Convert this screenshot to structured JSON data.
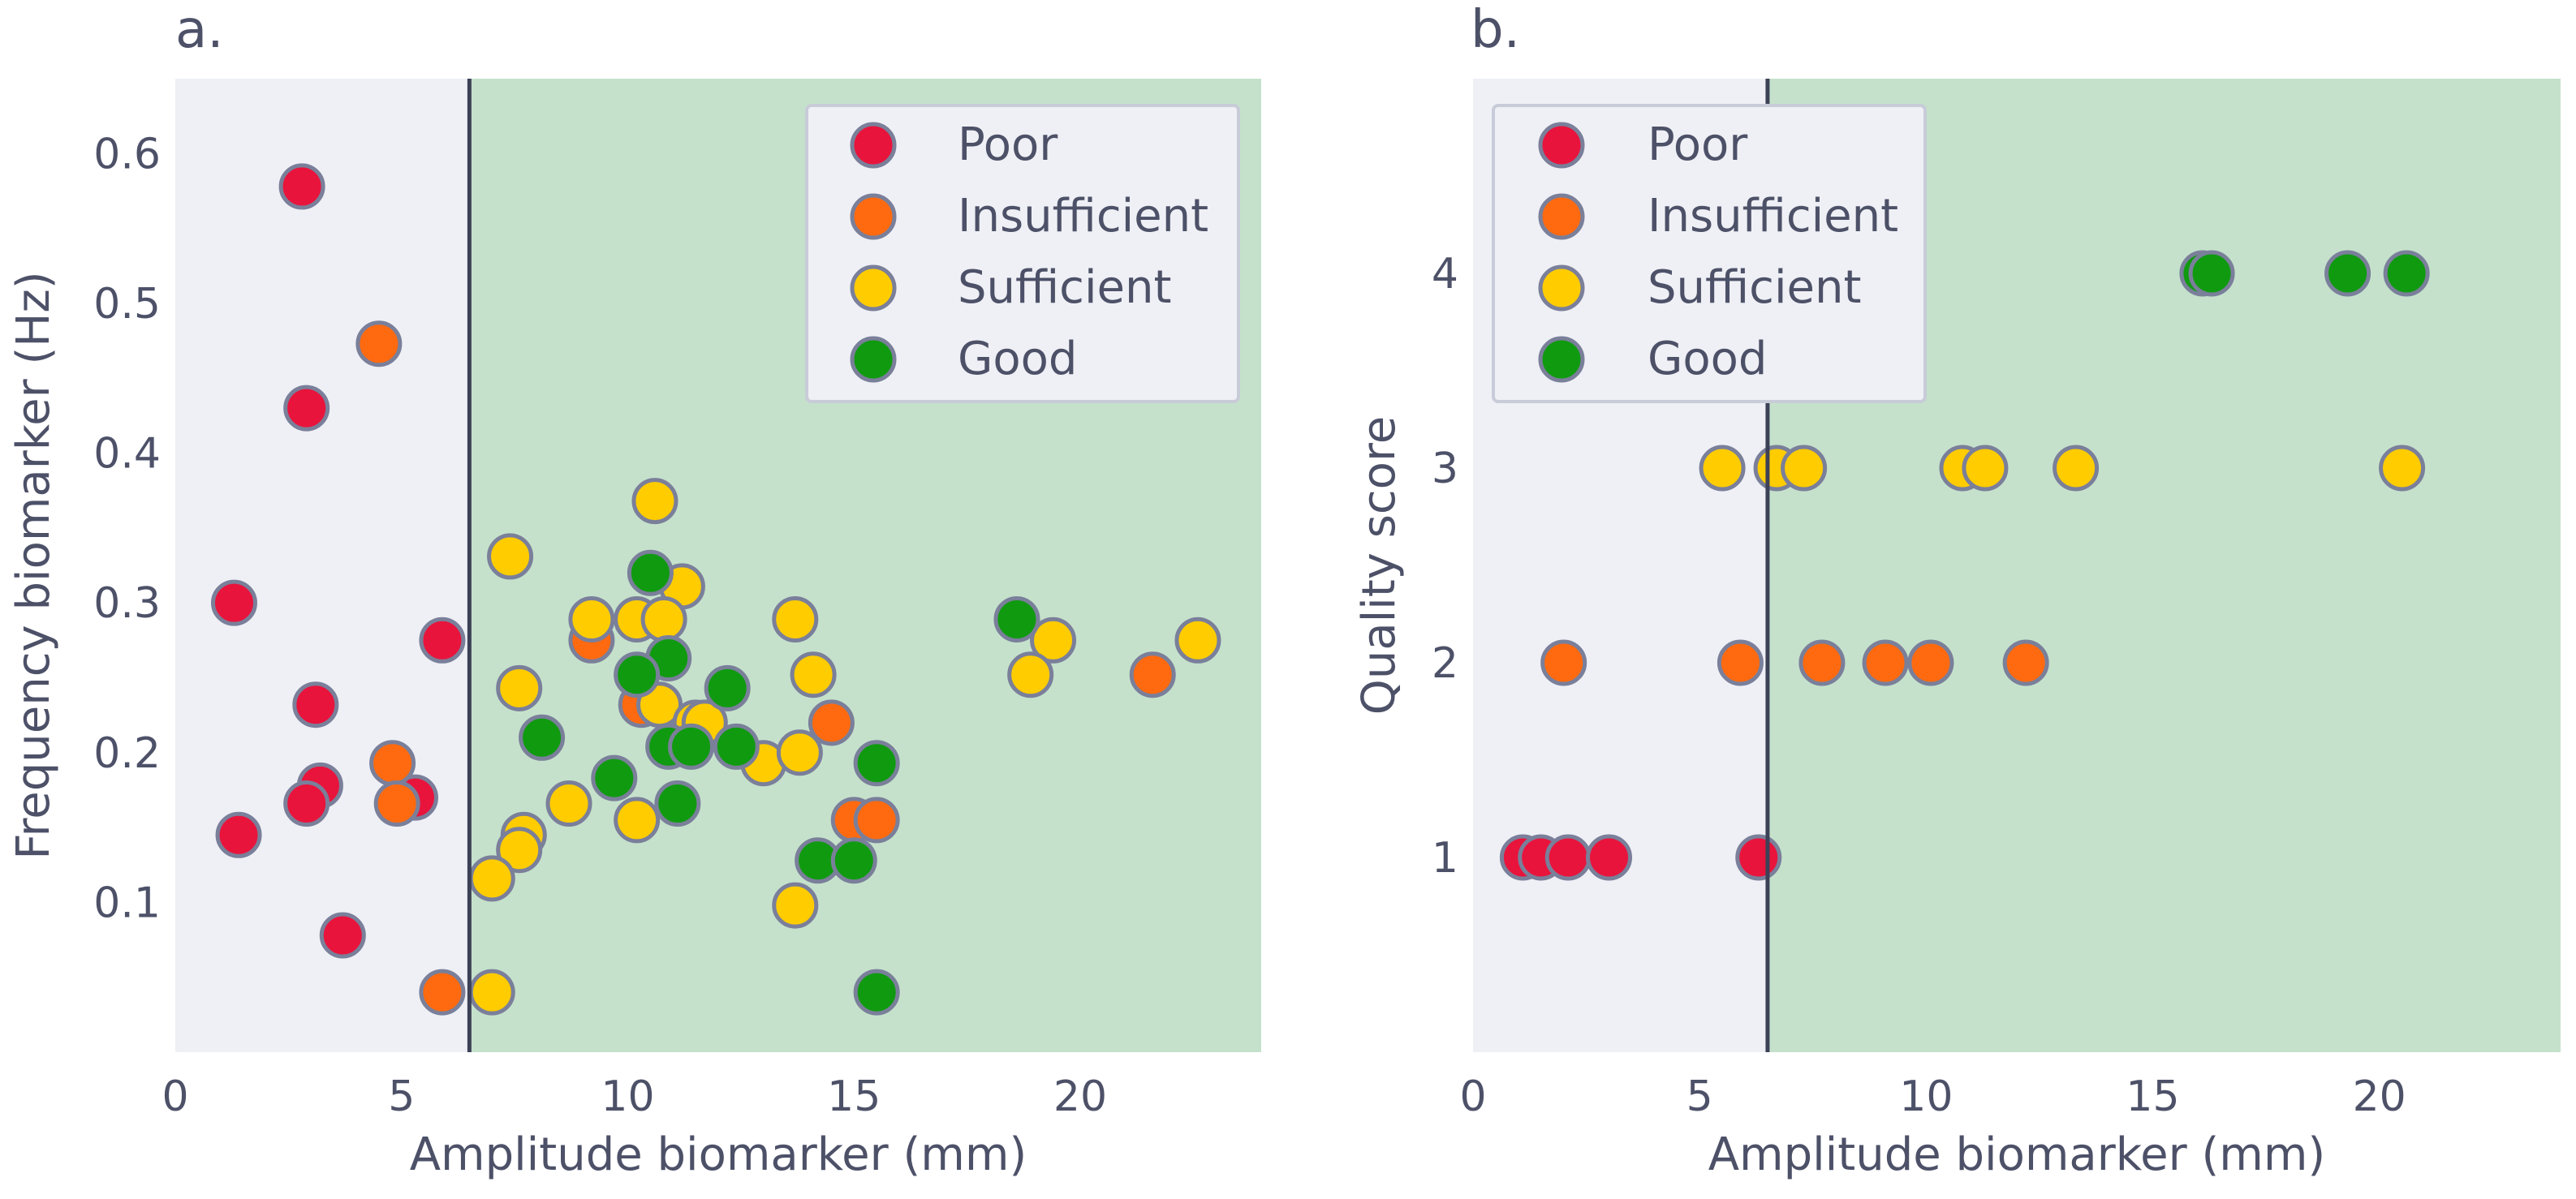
{
  "colors": {
    "poor": "#e8143c",
    "insufficient": "#ff6a10",
    "sufficient": "#ffcc00",
    "good": "#109a10",
    "marker_edge": "#7a7f9a",
    "plot_bg": "#eff0f5",
    "good_region": "#c5e1cb",
    "threshold_line": "#3d4157",
    "text": "#4d5168",
    "legend_bg": "#eff0f5",
    "legend_border": "#c8cbd8"
  },
  "chart_data": [
    {
      "panel_label": "a.",
      "type": "scatter",
      "xlabel": "Amplitude biomarker (mm)",
      "ylabel": "Frequency biomarker (Hz)",
      "xlim": [
        0,
        24
      ],
      "ylim": [
        0,
        0.65
      ],
      "xticks": [
        0,
        5,
        10,
        15,
        20
      ],
      "xtick_labels": [
        "0",
        "5",
        "10",
        "15",
        "20"
      ],
      "yticks": [
        0.1,
        0.2,
        0.3,
        0.4,
        0.5,
        0.6
      ],
      "ytick_labels": [
        "0.1",
        "0.2",
        "0.3",
        "0.4",
        "0.5",
        "0.6"
      ],
      "threshold_x": 6.5,
      "legend_position": "top-right",
      "series": [
        {
          "name": "Poor",
          "color_key": "poor",
          "points": [
            [
              2.8,
              0.578
            ],
            [
              2.9,
              0.43
            ],
            [
              1.3,
              0.3
            ],
            [
              5.9,
              0.275
            ],
            [
              3.1,
              0.232
            ],
            [
              3.2,
              0.178
            ],
            [
              2.9,
              0.166
            ],
            [
              5.3,
              0.17
            ],
            [
              1.4,
              0.145
            ],
            [
              3.7,
              0.078
            ]
          ]
        },
        {
          "name": "Insufficient",
          "color_key": "insufficient",
          "points": [
            [
              4.5,
              0.473
            ],
            [
              4.8,
              0.193
            ],
            [
              4.9,
              0.166
            ],
            [
              5.9,
              0.04
            ],
            [
              9.2,
              0.275
            ],
            [
              10.3,
              0.232
            ],
            [
              14.5,
              0.22
            ],
            [
              15.0,
              0.155
            ],
            [
              15.5,
              0.155
            ],
            [
              21.6,
              0.252
            ]
          ]
        },
        {
          "name": "Sufficient",
          "color_key": "sufficient",
          "points": [
            [
              10.6,
              0.368
            ],
            [
              7.4,
              0.331
            ],
            [
              11.2,
              0.311
            ],
            [
              9.2,
              0.289
            ],
            [
              10.2,
              0.289
            ],
            [
              10.8,
              0.289
            ],
            [
              13.7,
              0.289
            ],
            [
              7.6,
              0.243
            ],
            [
              10.7,
              0.232
            ],
            [
              11.5,
              0.22
            ],
            [
              13.0,
              0.193
            ],
            [
              13.8,
              0.2
            ],
            [
              14.1,
              0.252
            ],
            [
              19.4,
              0.275
            ],
            [
              22.6,
              0.275
            ],
            [
              18.9,
              0.252
            ],
            [
              8.7,
              0.166
            ],
            [
              10.2,
              0.155
            ],
            [
              7.7,
              0.145
            ],
            [
              7.6,
              0.135
            ],
            [
              7.0,
              0.116
            ],
            [
              13.7,
              0.098
            ],
            [
              7.0,
              0.04
            ],
            [
              11.7,
              0.22
            ]
          ]
        },
        {
          "name": "Good",
          "color_key": "good",
          "points": [
            [
              10.5,
              0.32
            ],
            [
              10.9,
              0.263
            ],
            [
              10.2,
              0.252
            ],
            [
              12.2,
              0.243
            ],
            [
              8.1,
              0.21
            ],
            [
              10.9,
              0.204
            ],
            [
              11.4,
              0.204
            ],
            [
              12.4,
              0.204
            ],
            [
              9.7,
              0.183
            ],
            [
              11.1,
              0.166
            ],
            [
              15.5,
              0.193
            ],
            [
              14.2,
              0.128
            ],
            [
              15.0,
              0.128
            ],
            [
              15.5,
              0.04
            ],
            [
              18.6,
              0.289
            ]
          ]
        }
      ]
    },
    {
      "panel_label": "b.",
      "type": "scatter",
      "xlabel": "Amplitude biomarker (mm)",
      "ylabel": "Quality score",
      "xlim": [
        0,
        24
      ],
      "ylim": [
        0,
        5
      ],
      "xticks": [
        0,
        5,
        10,
        15,
        20
      ],
      "xtick_labels": [
        "0",
        "5",
        "10",
        "15",
        "20"
      ],
      "yticks": [
        1,
        2,
        3,
        4
      ],
      "ytick_labels": [
        "1",
        "2",
        "3",
        "4"
      ],
      "threshold_x": 6.5,
      "legend_position": "top-left",
      "series": [
        {
          "name": "Poor",
          "color_key": "poor",
          "points": [
            [
              1.1,
              1
            ],
            [
              1.5,
              1
            ],
            [
              2.1,
              1
            ],
            [
              3.0,
              1
            ],
            [
              6.3,
              1
            ]
          ]
        },
        {
          "name": "Insufficient",
          "color_key": "insufficient",
          "points": [
            [
              2.0,
              2
            ],
            [
              5.9,
              2
            ],
            [
              7.7,
              2
            ],
            [
              9.1,
              2
            ],
            [
              10.1,
              2
            ],
            [
              12.2,
              2
            ]
          ]
        },
        {
          "name": "Sufficient",
          "color_key": "sufficient",
          "points": [
            [
              5.5,
              3
            ],
            [
              6.7,
              3
            ],
            [
              7.3,
              3
            ],
            [
              10.8,
              3
            ],
            [
              11.3,
              3
            ],
            [
              13.3,
              3
            ],
            [
              20.5,
              3
            ]
          ]
        },
        {
          "name": "Good",
          "color_key": "good",
          "points": [
            [
              16.1,
              4
            ],
            [
              16.3,
              4
            ],
            [
              19.3,
              4
            ],
            [
              20.6,
              4
            ]
          ]
        }
      ]
    }
  ]
}
